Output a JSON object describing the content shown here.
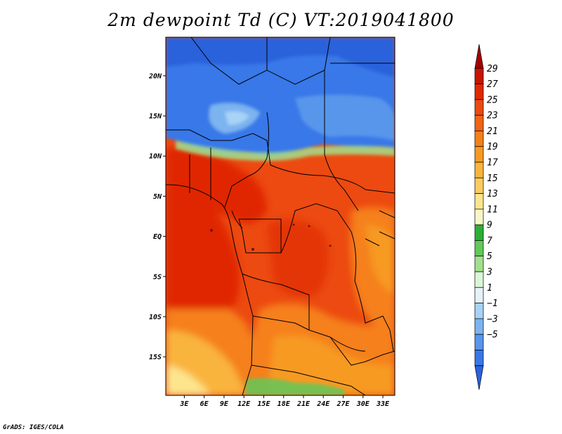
{
  "title": "2m dewpoint Td (C) VT:2019041800",
  "footer": "GrADS: IGES/COLA",
  "map": {
    "lat_labels": [
      "20N",
      "15N",
      "10N",
      "5N",
      "EQ",
      "5S",
      "10S",
      "15S"
    ],
    "lat_values": [
      20,
      15,
      10,
      5,
      0,
      -5,
      -10,
      -15
    ],
    "lon_labels": [
      "3E",
      "6E",
      "9E",
      "12E",
      "15E",
      "18E",
      "21E",
      "24E",
      "27E",
      "30E",
      "33E"
    ],
    "lon_values": [
      3,
      6,
      9,
      12,
      15,
      18,
      21,
      24,
      27,
      30,
      33
    ],
    "lon_range": [
      0.2,
      34.8
    ],
    "lat_range": [
      -19.8,
      24.8
    ]
  },
  "colorbar": {
    "labels": [
      "29",
      "27",
      "25",
      "23",
      "21",
      "19",
      "17",
      "15",
      "13",
      "11",
      "9",
      "7",
      "5",
      "3",
      "1",
      "−1",
      "−3",
      "−5"
    ],
    "colors": [
      "#a50000",
      "#c81400",
      "#e02800",
      "#ec4a10",
      "#f06414",
      "#f5801a",
      "#f79a22",
      "#f9b43e",
      "#fbcc60",
      "#fde58e",
      "#f6f8c8",
      "#2eae36",
      "#62c85a",
      "#a2e08c",
      "#daf6d8",
      "#e4f2fc",
      "#a8d2f6",
      "#7cb4f0",
      "#5896ec",
      "#3878e8",
      "#2a62dc"
    ]
  }
}
